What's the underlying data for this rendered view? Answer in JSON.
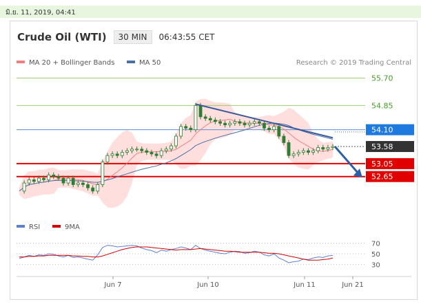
{
  "timestamp": "มิ.ย. 11, 2019, 04:41",
  "header": {
    "instrument": "Crude Oil (WTI)",
    "timeframe": "30 MIN",
    "time": "06:43:55 CET"
  },
  "legend": {
    "ma20_bb": "MA 20 + Bollinger Bands",
    "ma50": "MA 50",
    "credit": "Research © 2019 Trading Central"
  },
  "rsi_legend": {
    "rsi": "RSI",
    "ma9": "9MA"
  },
  "colors": {
    "ma20": "#f08080",
    "bands": "#ffd3d3",
    "ma50": "#4a6fa5",
    "resistance_green": "#9acd70",
    "pivot_blue": "#5b8fd6",
    "support_red": "#e00000",
    "price_box": "#333333",
    "arrow": "#2d5fa8",
    "candle": "#2e7d32",
    "rsi_line": "#5b7fd6",
    "rsi_ma": "#d40000"
  },
  "chart_data": [
    {
      "type": "candlestick",
      "x_labels": [
        "Jun 7",
        "Jun 10",
        "Jun 11",
        "Jun 21"
      ],
      "ylim": [
        51.6,
        56.2
      ],
      "price_levels": [
        {
          "label": "55.70",
          "value": 55.7,
          "kind": "resistance-green"
        },
        {
          "label": "54.85",
          "value": 54.85,
          "kind": "resistance-green"
        },
        {
          "label": "54.10",
          "value": 54.1,
          "kind": "pivot-blue"
        },
        {
          "label": "53.58",
          "value": 53.58,
          "kind": "last-price"
        },
        {
          "label": "53.05",
          "value": 53.05,
          "kind": "support-red"
        },
        {
          "label": "52.65",
          "value": 52.65,
          "kind": "support-red"
        }
      ],
      "price_path": [
        52.2,
        52.45,
        52.55,
        52.5,
        52.6,
        52.55,
        52.7,
        52.65,
        52.6,
        52.45,
        52.6,
        52.4,
        52.45,
        52.4,
        52.3,
        52.2,
        52.4,
        53.1,
        53.3,
        53.35,
        53.3,
        53.4,
        53.45,
        53.5,
        53.5,
        53.45,
        53.4,
        53.35,
        53.3,
        53.45,
        53.5,
        53.6,
        53.9,
        54.2,
        54.15,
        54.1,
        54.85,
        54.5,
        54.45,
        54.4,
        54.35,
        54.3,
        54.25,
        54.3,
        54.35,
        54.3,
        54.25,
        54.3,
        54.35,
        54.3,
        54.15,
        54.1,
        54.2,
        53.9,
        53.7,
        53.3,
        53.35,
        53.4,
        53.45,
        53.4,
        53.45,
        53.55,
        53.5,
        53.55,
        53.58
      ]
    },
    {
      "type": "line",
      "title": "RSI",
      "y_ticks": [
        70,
        50,
        30
      ],
      "ylim": [
        20,
        80
      ],
      "series": [
        {
          "name": "RSI",
          "values": [
            41,
            44,
            47,
            45,
            48,
            47,
            50,
            49,
            46,
            44,
            47,
            43,
            44,
            42,
            40,
            38,
            48,
            62,
            66,
            65,
            63,
            64,
            65,
            66,
            65,
            61,
            58,
            56,
            52,
            57,
            55,
            58,
            60,
            63,
            61,
            58,
            66,
            60,
            57,
            55,
            53,
            51,
            50,
            53,
            55,
            54,
            51,
            52,
            55,
            53,
            48,
            46,
            50,
            42,
            38,
            33,
            35,
            36,
            40,
            39,
            42,
            44,
            43,
            46,
            47
          ]
        },
        {
          "name": "9MA",
          "values": [
            44,
            44,
            45,
            45,
            46,
            46,
            47,
            47,
            47,
            47,
            47,
            46,
            46,
            45,
            45,
            44,
            44,
            46,
            49,
            52,
            55,
            58,
            60,
            62,
            63,
            63,
            63,
            62,
            61,
            60,
            59,
            58,
            57,
            58,
            58,
            58,
            59,
            60,
            59,
            58,
            57,
            56,
            55,
            55,
            54,
            53,
            53,
            53,
            53,
            53,
            52,
            51,
            51,
            50,
            48,
            46,
            44,
            42,
            40,
            38,
            38,
            38,
            39,
            40,
            42
          ]
        }
      ]
    }
  ]
}
